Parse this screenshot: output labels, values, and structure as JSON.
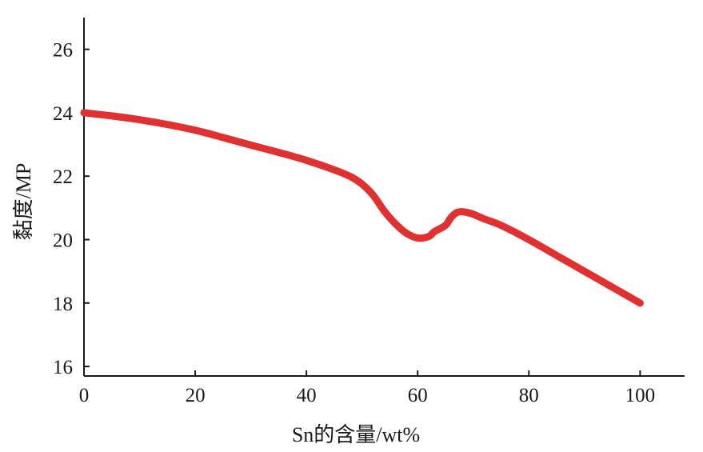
{
  "chart_data": {
    "type": "line",
    "title": "",
    "xlabel": "Sn的含量/wt%",
    "ylabel": "黏度/MP",
    "xlim": [
      0,
      108
    ],
    "ylim": [
      15.7,
      27
    ],
    "x_ticks": [
      "0",
      "20",
      "40",
      "60",
      "80",
      "100"
    ],
    "y_ticks": [
      "16",
      "18",
      "20",
      "22",
      "24",
      "26"
    ],
    "grid": false,
    "legend": "none",
    "series": [
      {
        "color": "#e03030",
        "x": [
          0,
          5,
          10,
          15,
          20,
          25,
          30,
          35,
          40,
          45,
          48,
          50,
          52,
          54,
          56,
          58,
          60,
          62,
          63,
          65,
          66,
          67,
          68,
          69,
          70,
          72,
          75,
          80,
          85,
          90,
          95,
          100
        ],
        "y": [
          24.0,
          23.9,
          23.78,
          23.63,
          23.45,
          23.22,
          22.98,
          22.75,
          22.5,
          22.2,
          21.98,
          21.75,
          21.4,
          20.9,
          20.5,
          20.2,
          20.05,
          20.1,
          20.25,
          20.45,
          20.7,
          20.85,
          20.88,
          20.85,
          20.8,
          20.65,
          20.45,
          20.0,
          19.5,
          19.0,
          18.5,
          18.0
        ]
      }
    ]
  }
}
